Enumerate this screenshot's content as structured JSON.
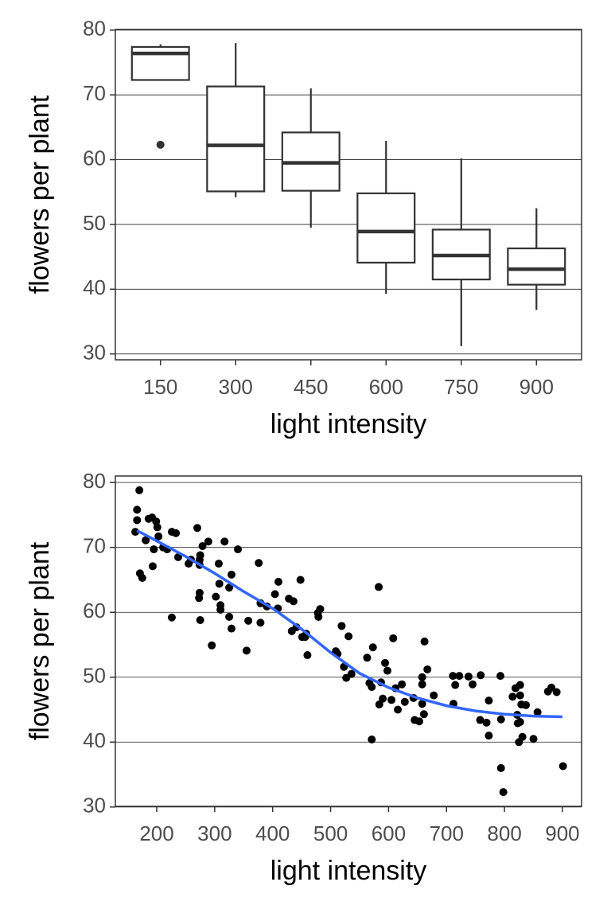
{
  "chart_data": [
    {
      "type": "box",
      "xlabel": "light intensity",
      "ylabel": "flowers per plant",
      "categories": [
        "150",
        "300",
        "450",
        "600",
        "750",
        "900"
      ],
      "boxes": [
        {
          "whisker_high": 77.8,
          "q3": 77.4,
          "median": 76.4,
          "q1": 72.3,
          "whisker_low": 72.3,
          "outliers": [
            62.3
          ]
        },
        {
          "whisker_high": 78.0,
          "q3": 71.3,
          "median": 62.2,
          "q1": 55.1,
          "whisker_low": 54.2,
          "outliers": []
        },
        {
          "whisker_high": 71.0,
          "q3": 64.2,
          "median": 59.5,
          "q1": 55.2,
          "whisker_low": 49.5,
          "outliers": []
        },
        {
          "whisker_high": 62.9,
          "q3": 54.8,
          "median": 48.9,
          "q1": 44.1,
          "whisker_low": 39.3,
          "outliers": []
        },
        {
          "whisker_high": 60.2,
          "q3": 49.2,
          "median": 45.2,
          "q1": 41.5,
          "whisker_low": 31.2,
          "outliers": []
        },
        {
          "whisker_high": 52.5,
          "q3": 46.3,
          "median": 43.1,
          "q1": 40.7,
          "whisker_low": 36.8,
          "outliers": []
        }
      ],
      "color": "#333333",
      "ylim": [
        29.1,
        80.1
      ],
      "yticks": [
        30,
        40,
        50,
        60,
        70,
        80
      ],
      "grid": true
    },
    {
      "type": "scatter",
      "xlabel": "light intensity",
      "ylabel": "flowers per plant",
      "x": [
        170,
        166,
        166,
        163,
        171,
        175,
        181,
        186,
        192,
        199,
        201,
        193,
        195,
        203,
        211,
        218,
        226,
        233,
        237,
        226,
        255,
        259,
        270,
        274,
        274,
        275,
        279,
        289,
        274,
        273,
        275,
        295,
        302,
        307,
        308,
        310,
        310,
        317,
        325,
        329,
        325,
        329,
        340,
        358,
        355,
        376,
        379,
        379,
        390,
        404,
        410,
        409,
        428,
        436,
        433,
        441,
        448,
        451,
        458,
        456,
        460,
        478,
        482,
        479,
        509,
        512,
        519,
        531,
        523,
        527,
        536,
        563,
        573,
        567,
        571,
        571,
        583,
        594,
        587,
        584,
        590,
        598,
        608,
        612,
        616,
        605,
        623,
        628,
        643,
        645,
        653,
        658,
        658,
        658,
        661,
        662,
        667,
        678,
        711,
        712,
        715,
        722,
        738,
        745,
        759,
        758,
        769,
        773,
        773,
        794,
        793,
        794,
        798,
        814,
        819,
        822,
        827,
        827,
        823,
        827,
        829,
        837,
        825,
        831,
        850,
        857,
        875,
        881,
        890,
        901
      ],
      "values": [
        78.8,
        75.8,
        74.2,
        72.4,
        66.0,
        65.3,
        71.1,
        74.4,
        74.6,
        74.0,
        73.1,
        67.1,
        69.7,
        71.7,
        70.0,
        69.7,
        72.4,
        72.2,
        68.5,
        59.2,
        67.5,
        68.1,
        73.0,
        68.1,
        67.3,
        68.8,
        70.2,
        70.9,
        63.0,
        62.2,
        58.8,
        54.9,
        62.4,
        67.5,
        64.4,
        61.1,
        60.4,
        70.9,
        63.8,
        65.8,
        59.3,
        57.5,
        69.7,
        58.7,
        54.1,
        67.6,
        61.4,
        58.4,
        60.9,
        62.8,
        64.7,
        60.6,
        62.1,
        61.7,
        57.1,
        57.7,
        65.0,
        56.2,
        56.7,
        56.2,
        53.4,
        59.9,
        60.5,
        59.3,
        54.0,
        53.6,
        57.9,
        56.3,
        51.6,
        49.9,
        50.5,
        53.0,
        54.6,
        49.1,
        48.5,
        40.4,
        63.9,
        52.2,
        49.2,
        45.8,
        46.7,
        51.0,
        56.0,
        48.3,
        45.0,
        46.5,
        48.9,
        46.2,
        46.8,
        43.4,
        43.2,
        50.0,
        48.9,
        45.9,
        44.3,
        55.5,
        51.2,
        47.2,
        50.2,
        45.9,
        48.8,
        50.2,
        50.1,
        48.9,
        50.3,
        43.4,
        43.0,
        46.4,
        41.0,
        43.5,
        50.2,
        36.0,
        32.3,
        47.0,
        48.3,
        44.2,
        48.8,
        47.2,
        42.9,
        43.1,
        45.8,
        45.7,
        40.0,
        40.8,
        40.5,
        44.6,
        47.8,
        48.4,
        47.7,
        36.3
      ],
      "color": "#000000",
      "smooth": {
        "color": "#3366ff",
        "x": [
          166,
          200,
          250,
          300,
          350,
          400,
          450,
          500,
          550,
          600,
          650,
          700,
          750,
          800,
          850,
          900
        ],
        "values": [
          72.6,
          71.0,
          68.6,
          66.0,
          63.2,
          60.6,
          57.4,
          53.8,
          50.6,
          48.4,
          46.8,
          45.6,
          44.8,
          44.3,
          44.0,
          43.9
        ]
      },
      "xlim": [
        128.6,
        933
      ],
      "xticks": [
        200,
        300,
        400,
        500,
        600,
        700,
        800,
        900
      ],
      "ylim": [
        30.1,
        81.0
      ],
      "yticks": [
        30,
        40,
        50,
        60,
        70,
        80
      ],
      "grid": true
    }
  ]
}
